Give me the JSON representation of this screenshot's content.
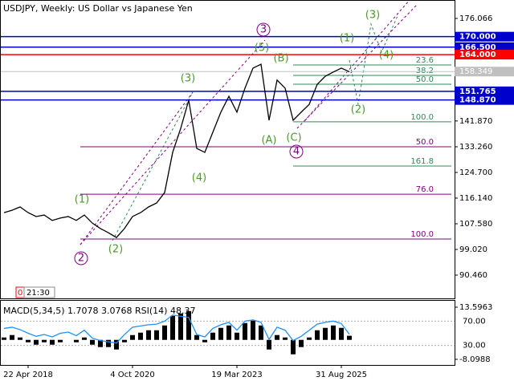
{
  "chart_data": [
    {
      "type": "line",
      "title": "USDJPY, Weekly:  US Dollar vs Japanese Yen",
      "timer_badge": "0",
      "timer": "21:30",
      "categories": [
        null,
        null,
        null,
        "22 Apr 2018",
        null,
        null,
        null,
        null,
        null,
        null,
        null,
        null,
        null,
        null,
        null,
        null,
        "4 Oct 2020",
        null,
        null,
        null,
        null,
        null,
        null,
        null,
        null,
        null,
        null,
        null,
        null,
        "19 Mar 2023",
        null,
        null,
        null,
        null,
        null,
        null,
        null,
        null,
        null,
        null,
        null,
        null,
        "31 Aug 2025",
        null
      ],
      "series": [
        {
          "name": "USDJPY",
          "color": "#000000",
          "values": [
            111.3,
            112.1,
            113.2,
            111.3,
            110.0,
            110.5,
            108.7,
            109.5,
            110.0,
            108.7,
            110.5,
            107.8,
            106.0,
            104.6,
            103.0,
            106.0,
            110.0,
            111.3,
            113.2,
            114.5,
            118.0,
            131.4,
            139.4,
            148.8,
            132.7,
            131.4,
            138.1,
            144.8,
            150.1,
            144.8,
            152.8,
            159.5,
            160.8,
            142.1,
            155.5,
            152.8,
            142.1,
            144.8,
            147.4,
            154.1,
            156.8,
            158.2,
            159.5,
            158.3
          ]
        }
      ],
      "ylim": [
        82.7,
        182.22
      ],
      "yticks": [
        176.066,
        {
          "value": 141.87,
          "label": "141.870"
        },
        {
          "value": 133.26,
          "label": "133.260"
        },
        {
          "value": 124.7,
          "label": "124.700"
        },
        {
          "value": 116.14,
          "label": "116.140"
        },
        {
          "value": 107.58,
          "label": "107.580"
        },
        {
          "value": 99.02,
          "label": "99.020"
        },
        {
          "value": 90.46,
          "label": "90.460"
        }
      ],
      "levels": [
        {
          "value": 170.0,
          "label": "170.000",
          "color": "#0000cc"
        },
        {
          "value": 166.5,
          "label": "166.500",
          "color": "#0000cc"
        },
        {
          "value": 164.0,
          "label": "164.000",
          "color": "#ff0000"
        },
        {
          "value": 151.765,
          "label": "151.765",
          "color": "#0000cc"
        },
        {
          "value": 148.87,
          "label": "148.870",
          "color": "#0000cc"
        }
      ],
      "current_price": {
        "value": 158.349,
        "label": "158.349",
        "color": "#c0c0c0"
      },
      "fib_levels": [
        {
          "value": 160.55,
          "label": "23.6",
          "color": "#2e8b57"
        },
        {
          "value": 157.07,
          "label": "38.2",
          "color": "#2e8b57"
        },
        {
          "value": 154.13,
          "label": "50.0",
          "color": "#2e8b57"
        },
        {
          "value": 141.6,
          "label": "100.0",
          "color": "#2e8b57"
        },
        {
          "value": 133.27,
          "label": "50.0",
          "color": "#800080"
        },
        {
          "value": 126.84,
          "label": "161.8",
          "color": "#2e8b57"
        },
        {
          "value": 117.44,
          "label": "76.0",
          "color": "#800080"
        },
        {
          "value": 102.5,
          "label": "100.0",
          "color": "#800080"
        }
      ],
      "annotations": [
        {
          "text": "(1)",
          "color": "#4a9a2a"
        },
        {
          "text": "2",
          "color": "#800080"
        },
        {
          "text": "(2)",
          "color": "#4a9a2a"
        },
        {
          "text": "(3)",
          "color": "#4a9a2a"
        },
        {
          "text": "(4)",
          "color": "#4a9a2a"
        },
        {
          "text": "3",
          "color": "#800080"
        },
        {
          "text": "(5)",
          "color": "#4a9a2a"
        },
        {
          "text": "(B)",
          "color": "#4a9a2a"
        },
        {
          "text": "(A)",
          "color": "#4a9a2a"
        },
        {
          "text": "(C)",
          "color": "#4a9a2a"
        },
        {
          "text": "4",
          "color": "#800080"
        },
        {
          "text": "(1)",
          "color": "#4a9a2a"
        },
        {
          "text": "(2)",
          "color": "#4a9a2a"
        },
        {
          "text": "(3)",
          "color": "#4a9a2a"
        },
        {
          "text": "(4)",
          "color": "#4a9a2a"
        }
      ]
    },
    {
      "type": "indicator",
      "title": "MACD(5,34,5) 1.7078 3.0768 RSI(14) 48.37",
      "series": [
        {
          "name": "MACD",
          "color": "#000000",
          "values": [
            1,
            2,
            1,
            -1,
            -2,
            -1,
            -2,
            -1,
            0,
            -1,
            1,
            -2,
            -3,
            -3,
            -4,
            -1,
            2,
            3,
            4,
            4,
            6,
            10,
            11,
            12,
            2,
            -1,
            3,
            5,
            6,
            3,
            7,
            8,
            6,
            -4,
            2,
            1,
            -6,
            -3,
            1,
            4,
            5,
            6,
            5,
            1.7078
          ]
        },
        {
          "name": "RSI",
          "color": "#1e90ff",
          "axis": "y2",
          "values": [
            58,
            60,
            56,
            50,
            45,
            48,
            44,
            50,
            52,
            46,
            55,
            42,
            38,
            36,
            34,
            48,
            60,
            62,
            64,
            65,
            70,
            80,
            78,
            76,
            48,
            44,
            58,
            64,
            68,
            55,
            70,
            72,
            68,
            40,
            60,
            55,
            38,
            45,
            55,
            65,
            68,
            70,
            66,
            48.37
          ]
        }
      ],
      "ylim": [
        -10.435,
        16.6
      ],
      "yticks": [
        13.5963,
        -8.0988
      ],
      "y2lim": [
        -2,
        104.7
      ],
      "y2ticks": [
        {
          "value": 70,
          "label": "70.00"
        },
        {
          "value": 30,
          "label": "30.00"
        }
      ]
    }
  ]
}
